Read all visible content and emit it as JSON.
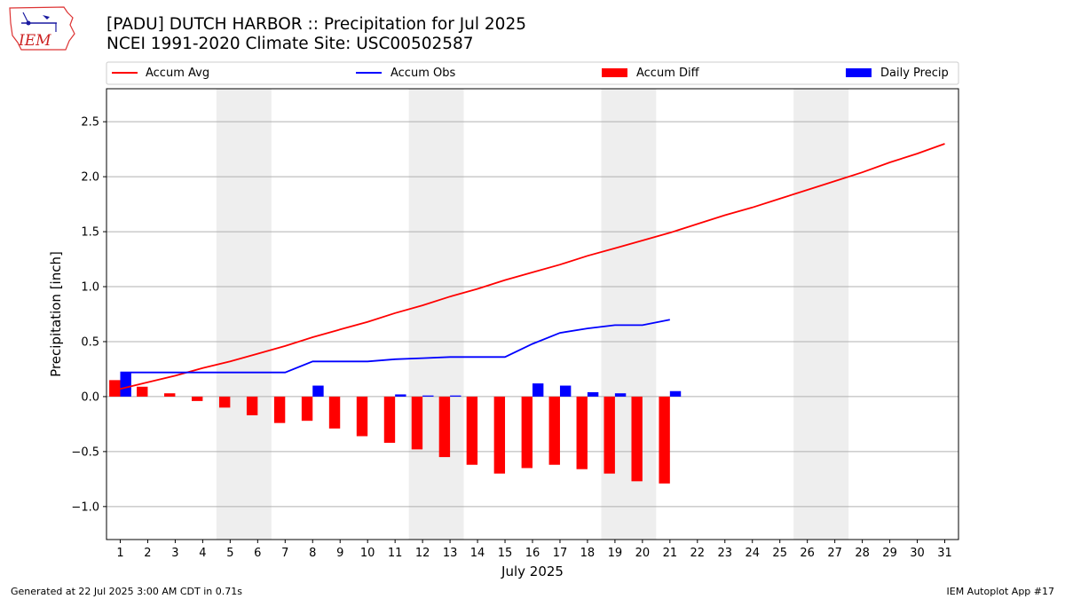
{
  "header": {
    "title_line1": "[PADU] DUTCH HARBOR :: Precipitation for Jul 2025",
    "title_line2": "NCEI 1991-2020 Climate Site: USC00502587"
  },
  "logo": {
    "text": "IEM"
  },
  "footer": {
    "left": "Generated at 22 Jul 2025 3:00 AM CDT in 0.71s",
    "right": "IEM Autoplot App #17"
  },
  "colors": {
    "accum_avg": "#ff0000",
    "accum_obs": "#0000ff",
    "accum_diff": "#ff0000",
    "daily_precip": "#0000ff",
    "weekend_band": "#eeeeee",
    "grid": "#b0b0b0"
  },
  "chart_data": {
    "type": "bar",
    "title": "[PADU] DUTCH HARBOR :: Precipitation for Jul 2025",
    "xlabel": "July 2025",
    "ylabel": "Precipitation [inch]",
    "xlim": [
      0.5,
      31.5
    ],
    "ylim": [
      -1.3,
      2.8
    ],
    "yticks": [
      -1.0,
      -0.5,
      0.0,
      0.5,
      1.0,
      1.5,
      2.0,
      2.5
    ],
    "ytick_labels": [
      "−1.0",
      "−0.5",
      "0.0",
      "0.5",
      "1.0",
      "1.5",
      "2.0",
      "2.5"
    ],
    "days": [
      1,
      2,
      3,
      4,
      5,
      6,
      7,
      8,
      9,
      10,
      11,
      12,
      13,
      14,
      15,
      16,
      17,
      18,
      19,
      20,
      21,
      22,
      23,
      24,
      25,
      26,
      27,
      28,
      29,
      30,
      31
    ],
    "weekend_bands": [
      [
        4.5,
        6.5
      ],
      [
        11.5,
        13.5
      ],
      [
        18.5,
        20.5
      ],
      [
        25.5,
        27.5
      ]
    ],
    "grid": "y",
    "legend_position": "top",
    "series": [
      {
        "name": "Accum Avg",
        "kind": "line",
        "x": [
          1,
          2,
          3,
          4,
          5,
          6,
          7,
          8,
          9,
          10,
          11,
          12,
          13,
          14,
          15,
          16,
          17,
          18,
          19,
          20,
          21,
          22,
          23,
          24,
          25,
          26,
          27,
          28,
          29,
          30,
          31
        ],
        "values": [
          0.07,
          0.13,
          0.19,
          0.26,
          0.32,
          0.39,
          0.46,
          0.54,
          0.61,
          0.68,
          0.76,
          0.83,
          0.91,
          0.98,
          1.06,
          1.13,
          1.2,
          1.28,
          1.35,
          1.42,
          1.49,
          1.57,
          1.65,
          1.72,
          1.8,
          1.88,
          1.96,
          2.04,
          2.13,
          2.21,
          2.3
        ]
      },
      {
        "name": "Accum Obs",
        "kind": "line",
        "x": [
          1,
          2,
          3,
          4,
          5,
          6,
          7,
          8,
          9,
          10,
          11,
          12,
          13,
          14,
          15,
          16,
          17,
          18,
          19,
          20,
          21
        ],
        "values": [
          0.22,
          0.22,
          0.22,
          0.22,
          0.22,
          0.22,
          0.22,
          0.32,
          0.32,
          0.32,
          0.34,
          0.35,
          0.36,
          0.36,
          0.36,
          0.48,
          0.58,
          0.62,
          0.65,
          0.65,
          0.7
        ]
      },
      {
        "name": "Accum Diff",
        "kind": "bar",
        "x": [
          1,
          2,
          3,
          4,
          5,
          6,
          7,
          8,
          9,
          10,
          11,
          12,
          13,
          14,
          15,
          16,
          17,
          18,
          19,
          20,
          21
        ],
        "values": [
          0.15,
          0.09,
          0.03,
          -0.04,
          -0.1,
          -0.17,
          -0.24,
          -0.22,
          -0.29,
          -0.36,
          -0.42,
          -0.48,
          -0.55,
          -0.62,
          -0.7,
          -0.65,
          -0.62,
          -0.66,
          -0.7,
          -0.77,
          -0.79
        ]
      },
      {
        "name": "Daily Precip",
        "kind": "bar",
        "x": [
          1,
          2,
          3,
          4,
          5,
          6,
          7,
          8,
          9,
          10,
          11,
          12,
          13,
          14,
          15,
          16,
          17,
          18,
          19,
          20,
          21
        ],
        "values": [
          0.22,
          0,
          0,
          0,
          0,
          0,
          0,
          0.1,
          0,
          0,
          0.02,
          0.01,
          0.01,
          0,
          0,
          0.12,
          0.1,
          0.04,
          0.03,
          0,
          0.05
        ]
      }
    ]
  }
}
